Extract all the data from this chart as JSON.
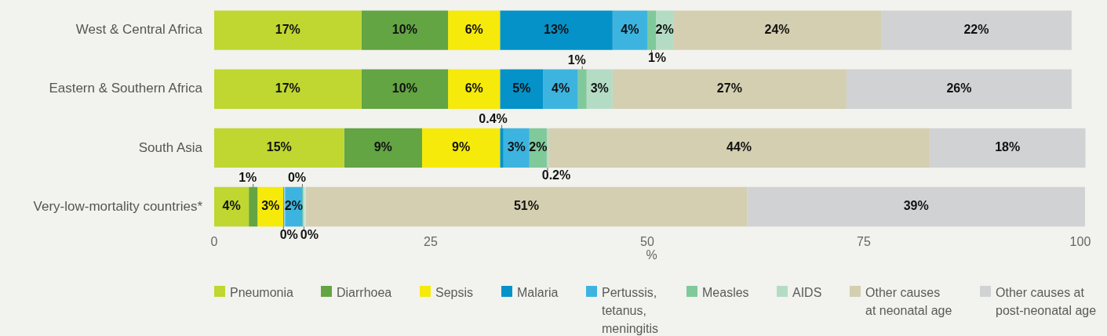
{
  "chart_data": {
    "type": "bar",
    "orientation": "horizontal",
    "stacked": true,
    "categories": [
      "West & Central Africa",
      "Eastern & Southern Africa",
      "South Asia",
      "Very-low-mortality countries*"
    ],
    "series": [
      {
        "name": "Pneumonia",
        "color": "#bfd730",
        "values": [
          17,
          17,
          15,
          4
        ],
        "value_labels": [
          "17%",
          "17%",
          "15%",
          "4%"
        ]
      },
      {
        "name": "Diarrhoea",
        "color": "#63a443",
        "values": [
          10,
          10,
          9,
          1
        ],
        "value_labels": [
          "10%",
          "10%",
          "9%",
          "1%"
        ]
      },
      {
        "name": "Sepsis",
        "color": "#f5ea0a",
        "values": [
          6,
          6,
          9,
          3
        ],
        "value_labels": [
          "6%",
          "6%",
          "9%",
          "3%"
        ]
      },
      {
        "name": "Malaria",
        "color": "#0492c9",
        "values": [
          13,
          5,
          0.4,
          0
        ],
        "value_labels": [
          "13%",
          "5%",
          "0.4%",
          "0%"
        ]
      },
      {
        "name": "Pertussis, tetanus, meningitis",
        "color": "#3db4e0",
        "values": [
          4,
          4,
          3,
          2
        ],
        "value_labels": [
          "4%",
          "4%",
          "3%",
          "2%"
        ]
      },
      {
        "name": "Measles",
        "color": "#80c99b",
        "values": [
          1,
          1,
          2,
          0
        ],
        "value_labels": [
          "1%",
          "1%",
          "2%",
          "0%"
        ]
      },
      {
        "name": "AIDS",
        "color": "#b4dcc4",
        "values": [
          2,
          3,
          0.2,
          0
        ],
        "value_labels": [
          "2%",
          "3%",
          "0.2%",
          "0%"
        ]
      },
      {
        "name": "Other causes at neonatal age",
        "color": "#d4cfb0",
        "values": [
          24,
          27,
          44,
          51
        ],
        "value_labels": [
          "24%",
          "27%",
          "44%",
          "51%"
        ]
      },
      {
        "name": "Other causes at post-neonatal age",
        "color": "#d1d2d4",
        "values": [
          22,
          26,
          18,
          39
        ],
        "value_labels": [
          "22%",
          "26%",
          "18%",
          "39%"
        ]
      }
    ],
    "xlabel": "%",
    "xlim": [
      0,
      101
    ],
    "xticks": [
      0,
      25,
      50,
      75,
      100
    ],
    "legend": "bottom"
  }
}
